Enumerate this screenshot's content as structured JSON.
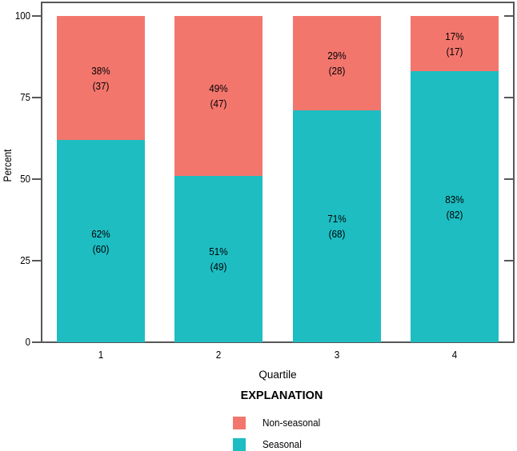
{
  "chart_data": {
    "type": "bar",
    "stacked": true,
    "title": "",
    "categories": [
      "1",
      "2",
      "3",
      "4"
    ],
    "series": [
      {
        "name": "Seasonal",
        "color": "#1DBDC2",
        "values": [
          62,
          51,
          71,
          83
        ],
        "counts": [
          60,
          49,
          68,
          82
        ]
      },
      {
        "name": "Non-seasonal",
        "color": "#F3766D",
        "values": [
          38,
          49,
          29,
          17
        ],
        "counts": [
          37,
          47,
          28,
          17
        ]
      }
    ],
    "segment_label_format": "value% (count)",
    "xlabel": "Quartile",
    "ylabel": "Percent",
    "ylim": [
      0,
      100
    ],
    "yticks": [
      0,
      25,
      50,
      75,
      100
    ],
    "grid": false,
    "legend": {
      "title": "EXPLANATION",
      "position": "bottom",
      "entries": [
        {
          "label": "Non-seasonal",
          "color": "#F3766D"
        },
        {
          "label": "Seasonal",
          "color": "#1DBDC2"
        }
      ]
    }
  },
  "colors": {
    "axis": "#575757",
    "text": "#000000",
    "background": "#FFFFFF"
  }
}
